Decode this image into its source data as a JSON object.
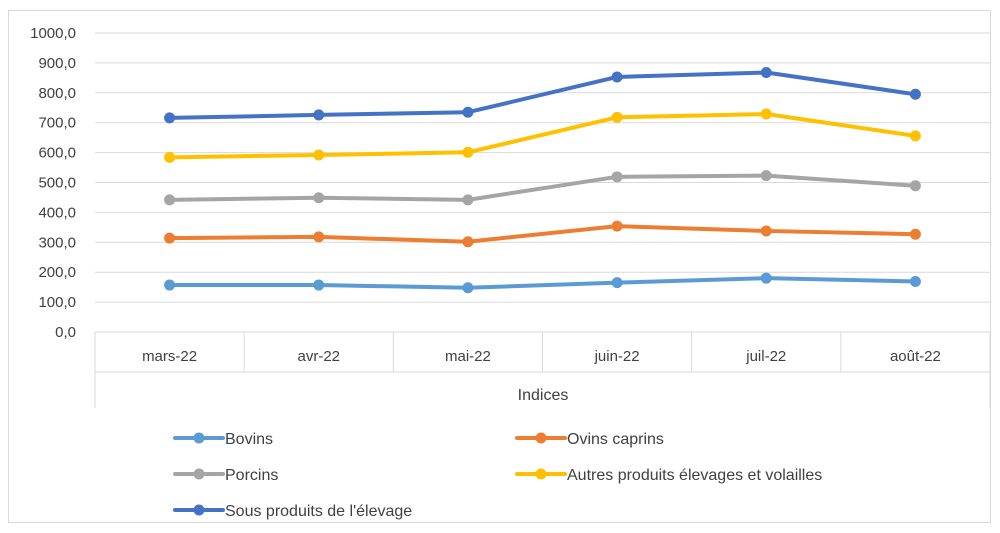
{
  "chart_data": {
    "type": "line",
    "categories": [
      "mars-22",
      "avr-22",
      "mai-22",
      "juin-22",
      "juil-22",
      "août-22"
    ],
    "xlabel": "Indices",
    "ylabel": "",
    "title": "",
    "ylim": [
      0,
      1000
    ],
    "ytick_step": 100,
    "ytick_labels": [
      "0,0",
      "100,0",
      "200,0",
      "300,0",
      "400,0",
      "500,0",
      "600,0",
      "700,0",
      "800,0",
      "900,0",
      "1000,0"
    ],
    "grid": true,
    "legend_position": "bottom",
    "series": [
      {
        "name": "Bovins",
        "color": "#5b9bd5",
        "values": [
          157,
          157,
          148,
          165,
          180,
          169
        ]
      },
      {
        "name": "Ovins caprins",
        "color": "#ed7d31",
        "values": [
          314,
          318,
          302,
          354,
          338,
          327
        ]
      },
      {
        "name": "Porcins",
        "color": "#a5a5a5",
        "values": [
          442,
          449,
          442,
          519,
          523,
          489
        ]
      },
      {
        "name": "Autres produits élevages et volailles",
        "color": "#ffc000",
        "values": [
          584,
          592,
          601,
          718,
          729,
          656
        ]
      },
      {
        "name": "Sous produits de l'élevage",
        "color": "#4472c4",
        "values": [
          716,
          726,
          735,
          853,
          868,
          795
        ]
      }
    ]
  }
}
